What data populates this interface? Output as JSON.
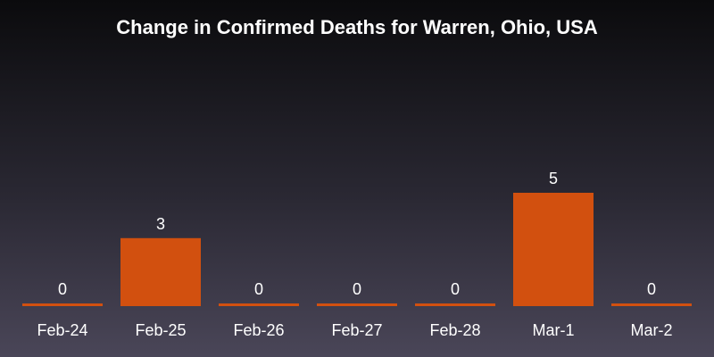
{
  "chart_data": {
    "type": "bar",
    "title": "Change in Confirmed Deaths for Warren, Ohio, USA",
    "xlabel": "",
    "ylabel": "",
    "categories": [
      "Feb-24",
      "Feb-25",
      "Feb-26",
      "Feb-27",
      "Feb-28",
      "Mar-1",
      "Mar-2"
    ],
    "values": [
      0,
      3,
      0,
      0,
      0,
      5,
      0
    ],
    "ylim": [
      0,
      5
    ],
    "grid": false,
    "data_labels": true,
    "colors": {
      "bar": "#d2500f",
      "text": "#ffffff"
    }
  }
}
